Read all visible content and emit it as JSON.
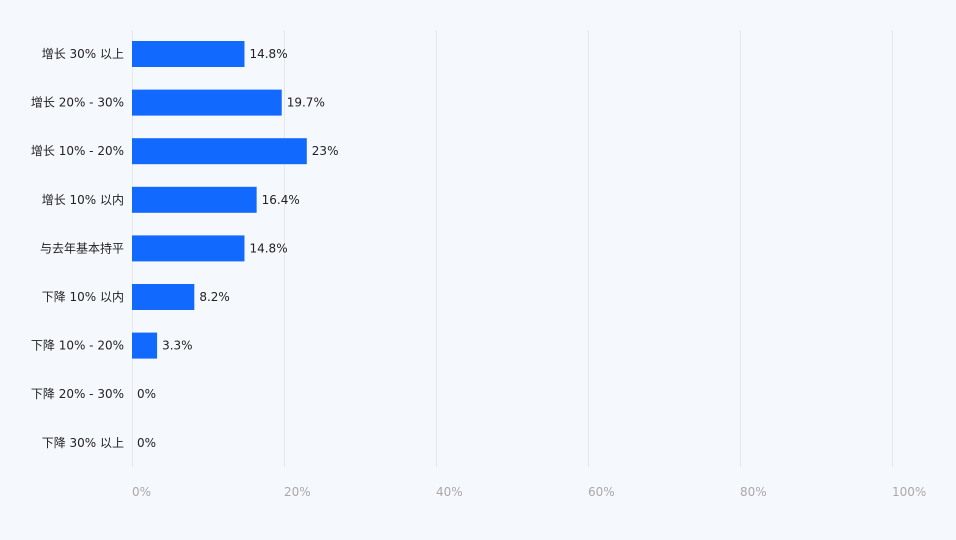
{
  "chart_data": {
    "type": "bar",
    "orientation": "horizontal",
    "categories": [
      "增长 30% 以上",
      "增长 20% - 30%",
      "增长 10% - 20%",
      "增长 10% 以内",
      "与去年基本持平",
      "下降 10% 以内",
      "下降 10% - 20%",
      "下降 20% - 30%",
      "下降 30% 以上"
    ],
    "values": [
      14.8,
      19.7,
      23,
      16.4,
      14.8,
      8.2,
      3.3,
      0,
      0
    ],
    "value_labels": [
      "14.8%",
      "19.7%",
      "23%",
      "16.4%",
      "14.8%",
      "8.2%",
      "3.3%",
      "0%",
      "0%"
    ],
    "xlim": [
      0,
      100
    ],
    "x_ticks": [
      0,
      20,
      40,
      60,
      80,
      100
    ],
    "x_tick_labels": [
      "0%",
      "20%",
      "40%",
      "60%",
      "80%",
      "100%"
    ],
    "grid": "vertical",
    "colors": {
      "bar": "#1269fe",
      "background": "#f5f9fe",
      "grid": "#e3e7ee",
      "tick_text": "#a8a8a8",
      "label_text": "#222222"
    }
  }
}
